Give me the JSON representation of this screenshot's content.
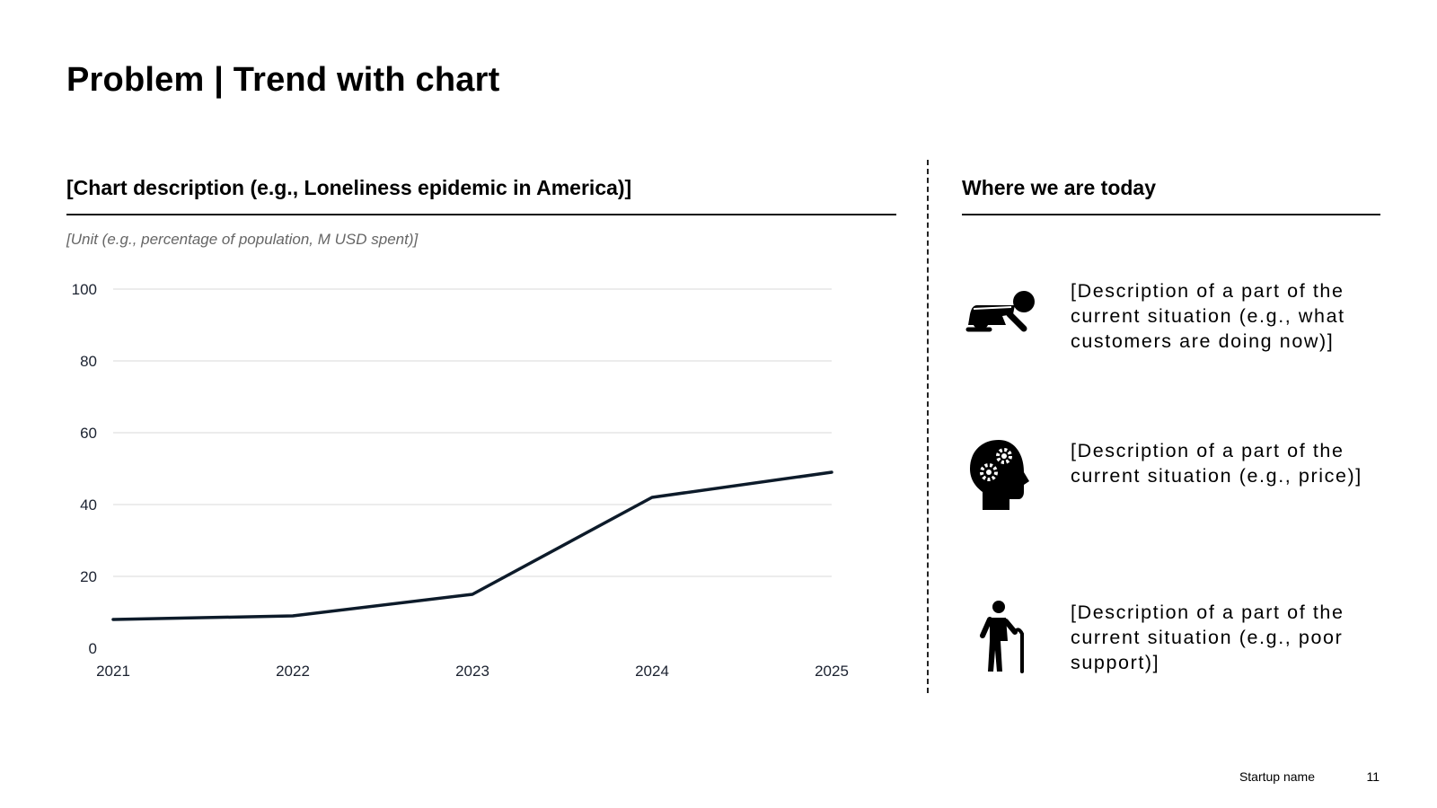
{
  "slide": {
    "title": "Problem | Trend with chart",
    "footer_name": "Startup name",
    "page_number": "11"
  },
  "chart_section": {
    "title": "[Chart description (e.g., Loneliness epidemic in America)]",
    "unit": "[Unit (e.g., percentage of population, M USD spent)]"
  },
  "chart_data": {
    "type": "line",
    "title": "",
    "xlabel": "",
    "ylabel": "",
    "x": [
      "2021",
      "2022",
      "2023",
      "2024",
      "2025"
    ],
    "y_ticks": [
      "0",
      "20",
      "40",
      "60",
      "80",
      "100"
    ],
    "ylim": [
      0,
      100
    ],
    "grid": true,
    "series": [
      {
        "values": [
          8,
          9,
          15,
          42,
          49
        ],
        "color": "#0d1b2a"
      }
    ]
  },
  "today_section": {
    "title": "Where we are today",
    "items": [
      {
        "icon": "crawling-baby-icon",
        "text": "[Description of a part of the current situation (e.g., what customers are doing now)]"
      },
      {
        "icon": "head-gears-icon",
        "text": "[Description of a part of the current situation (e.g., price)]"
      },
      {
        "icon": "elderly-person-cane-icon",
        "text": "[Description of a part of the current situation (e.g., poor support)]"
      }
    ]
  }
}
